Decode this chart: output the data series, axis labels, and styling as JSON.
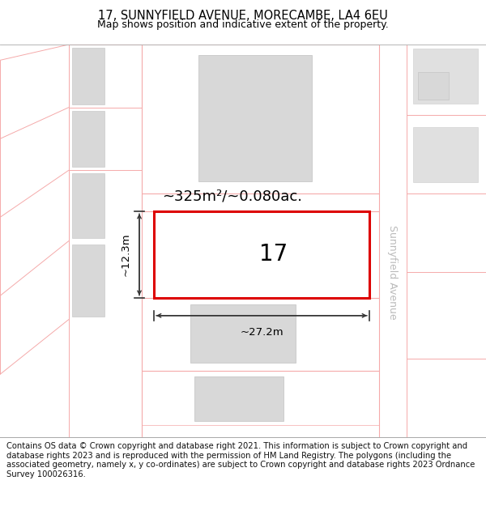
{
  "title_line1": "17, SUNNYFIELD AVENUE, MORECAMBE, LA4 6EU",
  "title_line2": "Map shows position and indicative extent of the property.",
  "footer_text": "Contains OS data © Crown copyright and database right 2021. This information is subject to Crown copyright and database rights 2023 and is reproduced with the permission of HM Land Registry. The polygons (including the associated geometry, namely x, y co-ordinates) are subject to Crown copyright and database rights 2023 Ordnance Survey 100026316.",
  "area_label": "~325m²/~0.080ac.",
  "width_label": "~27.2m",
  "height_label": "~12.3m",
  "property_number": "17",
  "bg_color": "#ffffff",
  "highlight_plot_fill": "#ffffff",
  "highlight_plot_edge": "#dd0000",
  "building_fill": "#d8d8d8",
  "building_edge": "#c0c0c0",
  "boundary_color": "#f5aaaa",
  "dim_line_color": "#333333",
  "street_label": "Sunnyfield Avenue",
  "title_fontsize": 10.5,
  "subtitle_fontsize": 9,
  "footer_fontsize": 7.2,
  "number_fontsize": 20,
  "area_fontsize": 13,
  "dim_fontsize": 9.5,
  "street_fontsize": 9
}
